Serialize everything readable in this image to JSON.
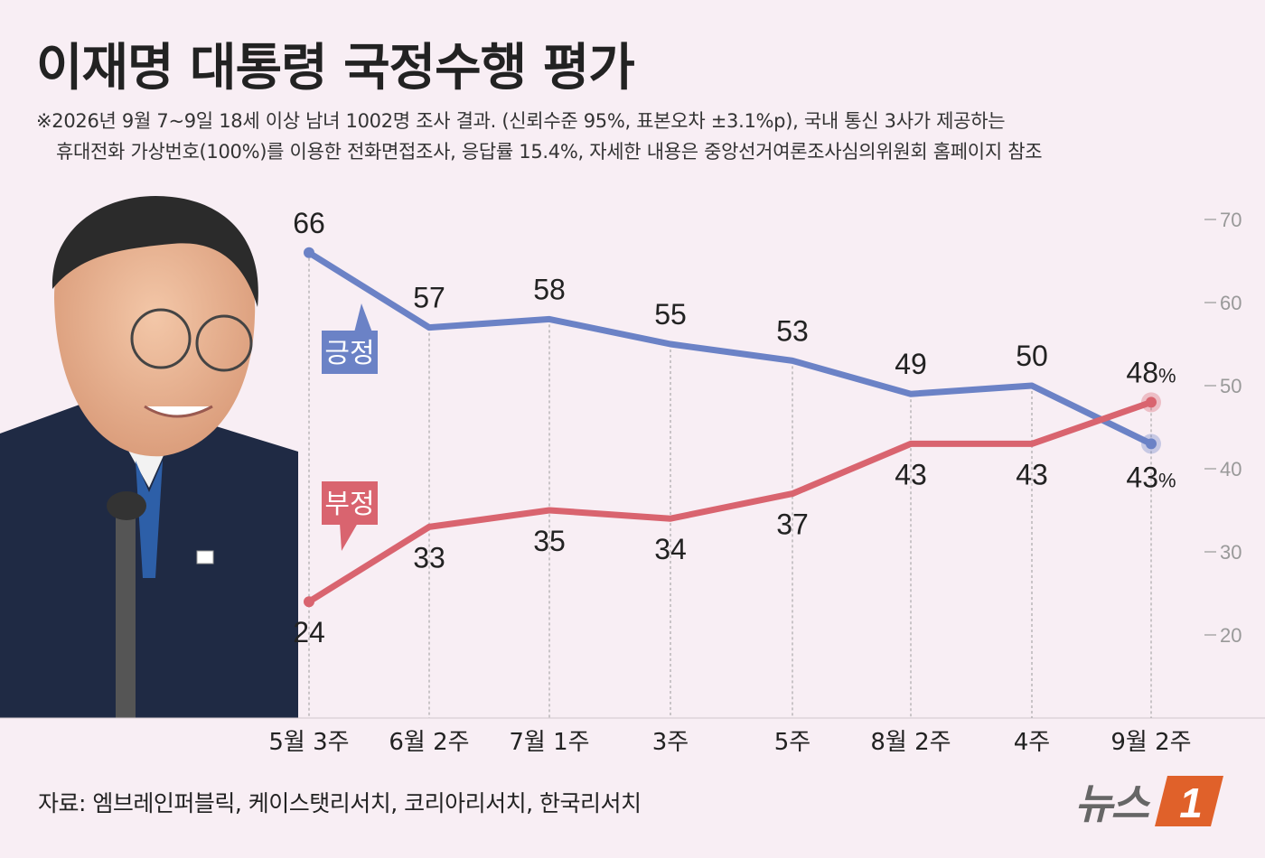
{
  "header": {
    "title": "이재명 대통령 국정수행 평가",
    "note_line1": "※2026년 9월 7~9일 18세 이상 남녀 1002명 조사 결과. (신뢰수준 95%, 표본오차 ±3.1%p), 국내 통신 3사가 제공하는",
    "note_line2": "휴대전화  가상번호(100%)를 이용한 전화면접조사, 응답률 15.4%, 자세한 내용은 중앙선거여론조사심의위원회 홈페이지 참조"
  },
  "footer": {
    "source": "자료: 엠브레인퍼블릭, 케이스탯리서치, 코리아리서치, 한국리서치",
    "brand": "뉴스",
    "brand_mark": "1"
  },
  "colors": {
    "background": "#f8eef4",
    "positive": "#6b82c6",
    "negative": "#d9646f",
    "positive_label_bg": "#6b82c6",
    "negative_label_bg": "#d9646f",
    "brand_orange": "#e0612a"
  },
  "chart_data": {
    "type": "line",
    "categories": [
      "5월 3주",
      "6월 2주",
      "7월 1주",
      "3주",
      "5주",
      "8월 2주",
      "4주",
      "9월 2주"
    ],
    "series": [
      {
        "name": "긍정",
        "values": [
          66,
          57,
          58,
          55,
          53,
          49,
          50,
          43
        ]
      },
      {
        "name": "부정",
        "values": [
          24,
          33,
          35,
          34,
          37,
          43,
          43,
          48
        ]
      }
    ],
    "ylim": [
      20,
      70
    ],
    "yticks": [
      20,
      30,
      40,
      50,
      60,
      70
    ],
    "last_value_suffix": "%",
    "grid": "dotted vertical lines at each category",
    "legend": "callout boxes beside lines"
  }
}
